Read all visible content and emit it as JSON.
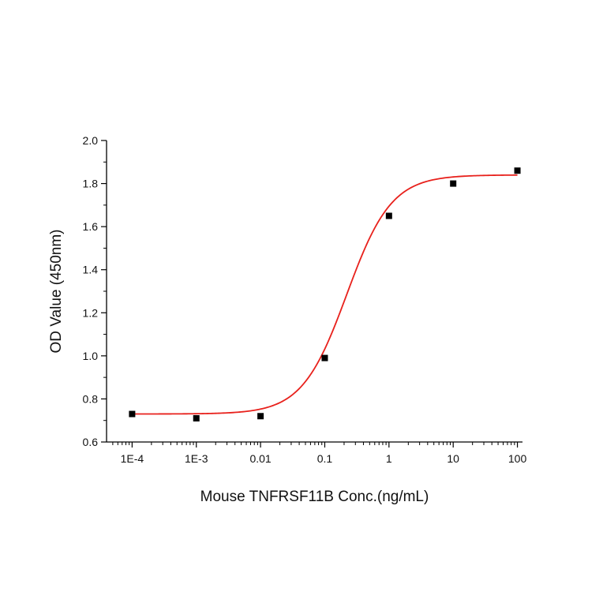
{
  "chart_data": {
    "type": "scatter",
    "xlabel": "Mouse TNFRSF11B Conc.(ng/mL)",
    "ylabel": "OD Value (450nm)",
    "x_scale": "log",
    "xlim": [
      4e-05,
      120
    ],
    "ylim": [
      0.6,
      2.0
    ],
    "x_ticks": [
      {
        "value": 0.0001,
        "label": "1E-4"
      },
      {
        "value": 0.001,
        "label": "1E-3"
      },
      {
        "value": 0.01,
        "label": "0.01"
      },
      {
        "value": 0.1,
        "label": "0.1"
      },
      {
        "value": 1,
        "label": "1"
      },
      {
        "value": 10,
        "label": "10"
      },
      {
        "value": 100,
        "label": "100"
      }
    ],
    "y_ticks": [
      {
        "value": 0.6,
        "label": "0.6"
      },
      {
        "value": 0.8,
        "label": "0.8"
      },
      {
        "value": 1.0,
        "label": "1.0"
      },
      {
        "value": 1.2,
        "label": "1.2"
      },
      {
        "value": 1.4,
        "label": "1.4"
      },
      {
        "value": 1.6,
        "label": "1.6"
      },
      {
        "value": 1.8,
        "label": "1.8"
      },
      {
        "value": 2.0,
        "label": "2.0"
      }
    ],
    "points": [
      {
        "x": 0.0001,
        "y": 0.73
      },
      {
        "x": 0.001,
        "y": 0.71
      },
      {
        "x": 0.01,
        "y": 0.72
      },
      {
        "x": 0.1,
        "y": 0.99
      },
      {
        "x": 1,
        "y": 1.65
      },
      {
        "x": 10,
        "y": 1.8
      },
      {
        "x": 100,
        "y": 1.86
      }
    ],
    "fit": {
      "model": "4PL",
      "bottom": 0.73,
      "top": 1.84,
      "ec50": 0.22,
      "hill": 1.25
    },
    "grid": false,
    "colors": {
      "points": "#000000",
      "fit": "#e8211c",
      "axis": "#000000"
    }
  }
}
